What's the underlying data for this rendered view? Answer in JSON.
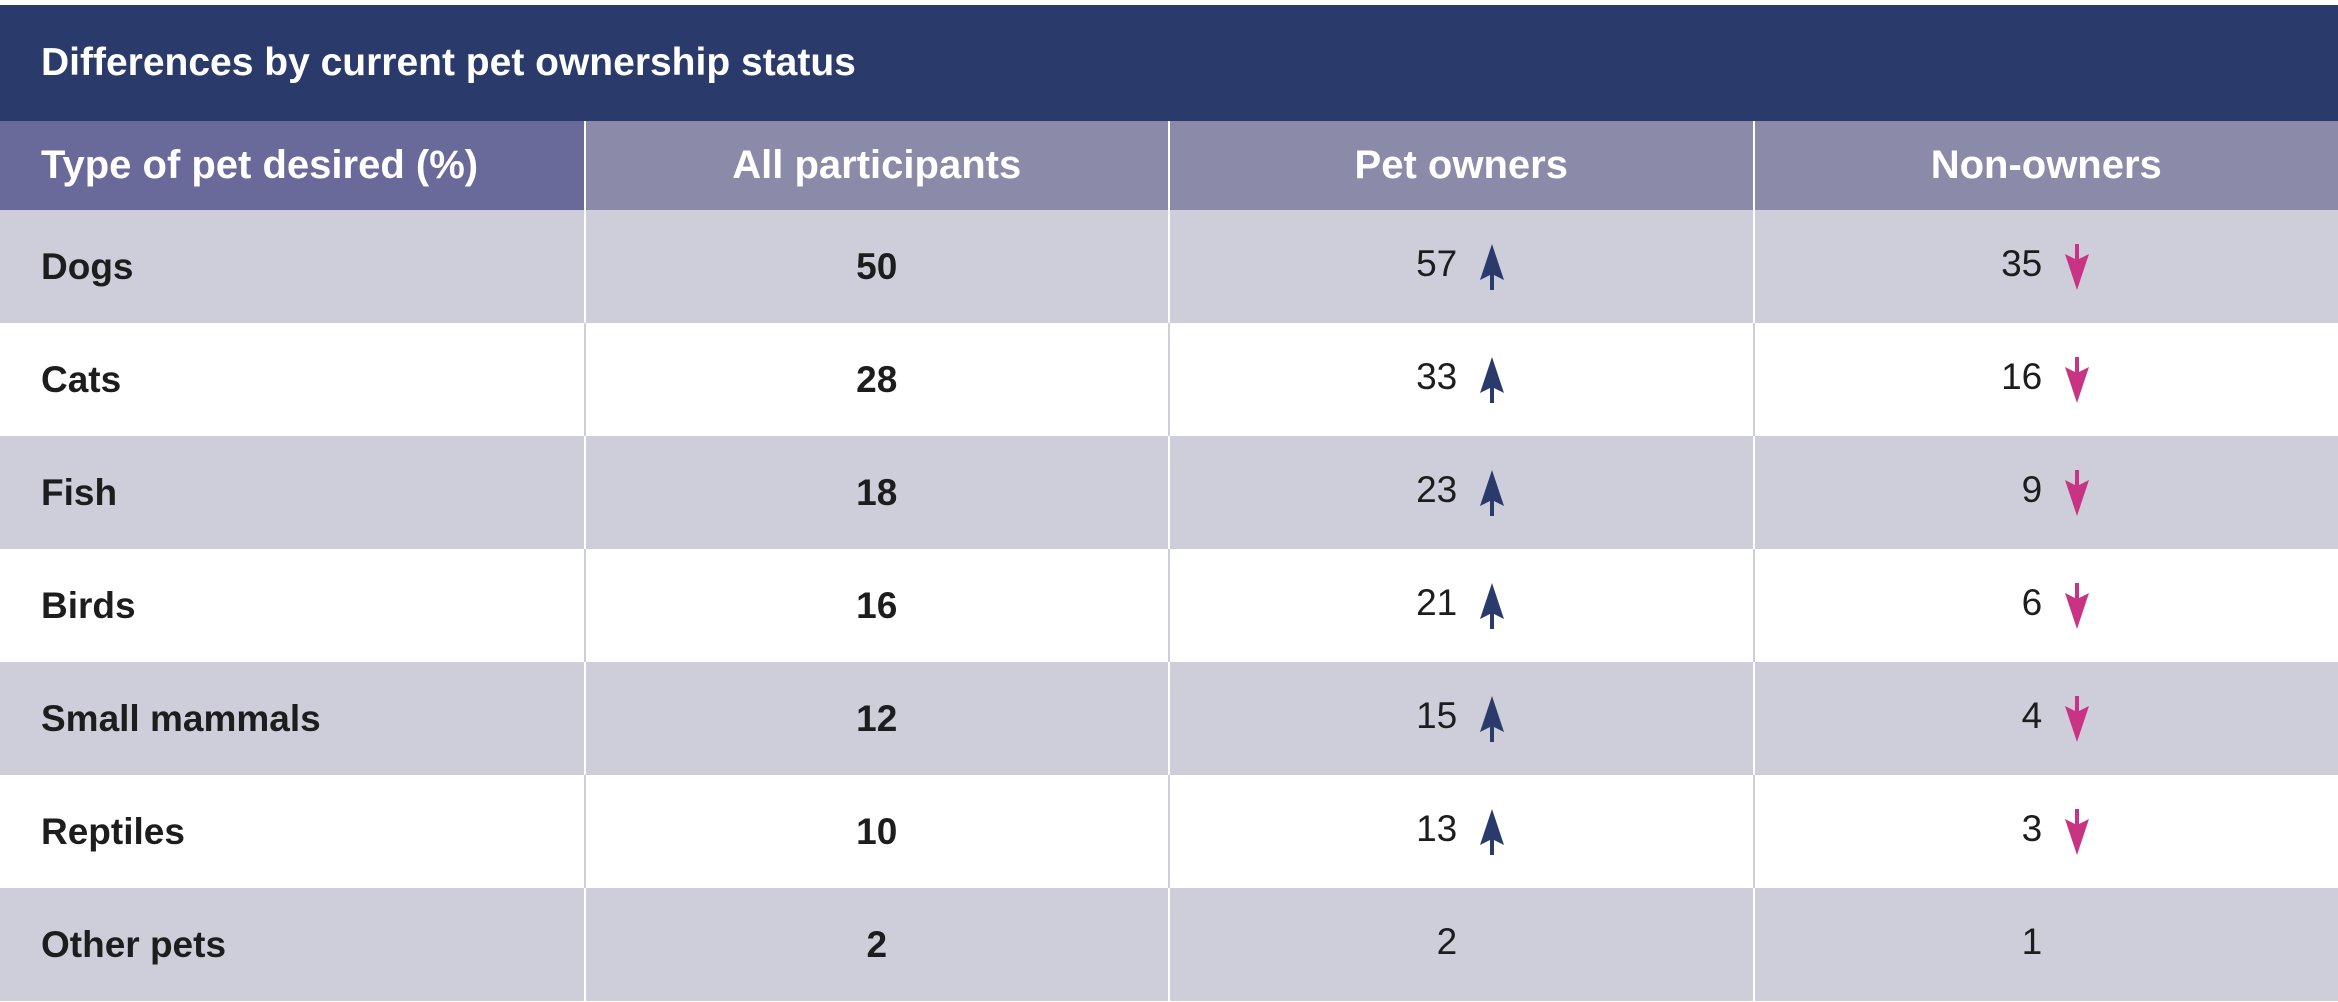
{
  "title": "Differences by current pet ownership status",
  "columns": [
    "Type of pet desired (%)",
    "All participants",
    "Pet owners",
    "Non-owners"
  ],
  "rows": [
    {
      "label": "Dogs",
      "all": "50",
      "owners": "57",
      "owners_trend": "up",
      "non_owners": "35",
      "non_owners_trend": "down"
    },
    {
      "label": "Cats",
      "all": "28",
      "owners": "33",
      "owners_trend": "up",
      "non_owners": "16",
      "non_owners_trend": "down"
    },
    {
      "label": "Fish",
      "all": "18",
      "owners": "23",
      "owners_trend": "up",
      "non_owners": "9",
      "non_owners_trend": "down"
    },
    {
      "label": "Birds",
      "all": "16",
      "owners": "21",
      "owners_trend": "up",
      "non_owners": "6",
      "non_owners_trend": "down"
    },
    {
      "label": "Small mammals",
      "all": "12",
      "owners": "15",
      "owners_trend": "up",
      "non_owners": "4",
      "non_owners_trend": "down"
    },
    {
      "label": "Reptiles",
      "all": "10",
      "owners": "13",
      "owners_trend": "up",
      "non_owners": "3",
      "non_owners_trend": "down"
    },
    {
      "label": "Other pets",
      "all": "2",
      "owners": "2",
      "owners_trend": "none",
      "non_owners": "1",
      "non_owners_trend": "none"
    }
  ],
  "colors": {
    "header_bar": "#293a6b",
    "column_header": "#8b8aa9",
    "first_column_header": "#69699a",
    "shaded_row": "#cecedb",
    "up_arrow": "#293a6b",
    "down_arrow": "#c83384"
  },
  "icons": {
    "up": "arrow-up-icon",
    "down": "arrow-down-icon"
  }
}
